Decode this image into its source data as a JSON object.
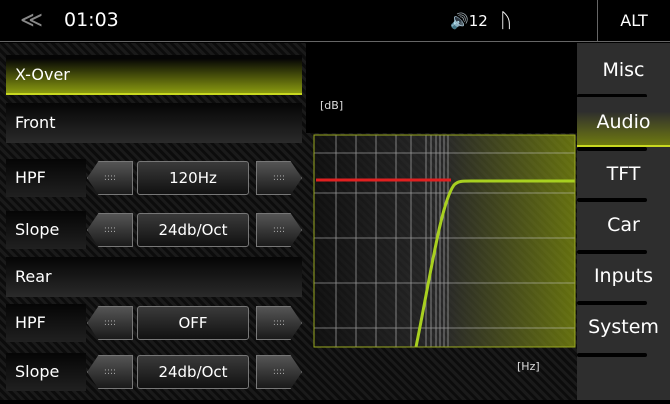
{
  "status": {
    "time": "01:03",
    "volume": "12",
    "alt_label": "ALT"
  },
  "panel": {
    "title": "X-Over",
    "front_label": "Front",
    "front": {
      "hpf_label": "HPF",
      "hpf_value": "120Hz",
      "slope_label": "Slope",
      "slope_value": "24db/Oct"
    },
    "rear_label": "Rear",
    "rear": {
      "hpf_label": "HPF",
      "hpf_value": "OFF",
      "slope_label": "Slope",
      "slope_value": "24db/Oct"
    }
  },
  "graph": {
    "y_unit": "[dB]",
    "x_unit": "[Hz]",
    "colors": {
      "curve": "#a8d020",
      "level": "#e02020"
    }
  },
  "menu": {
    "items": [
      "Misc",
      "Audio",
      "TFT",
      "Car",
      "Inputs",
      "System"
    ],
    "selected": "Audio"
  },
  "accent": "#c8d820"
}
